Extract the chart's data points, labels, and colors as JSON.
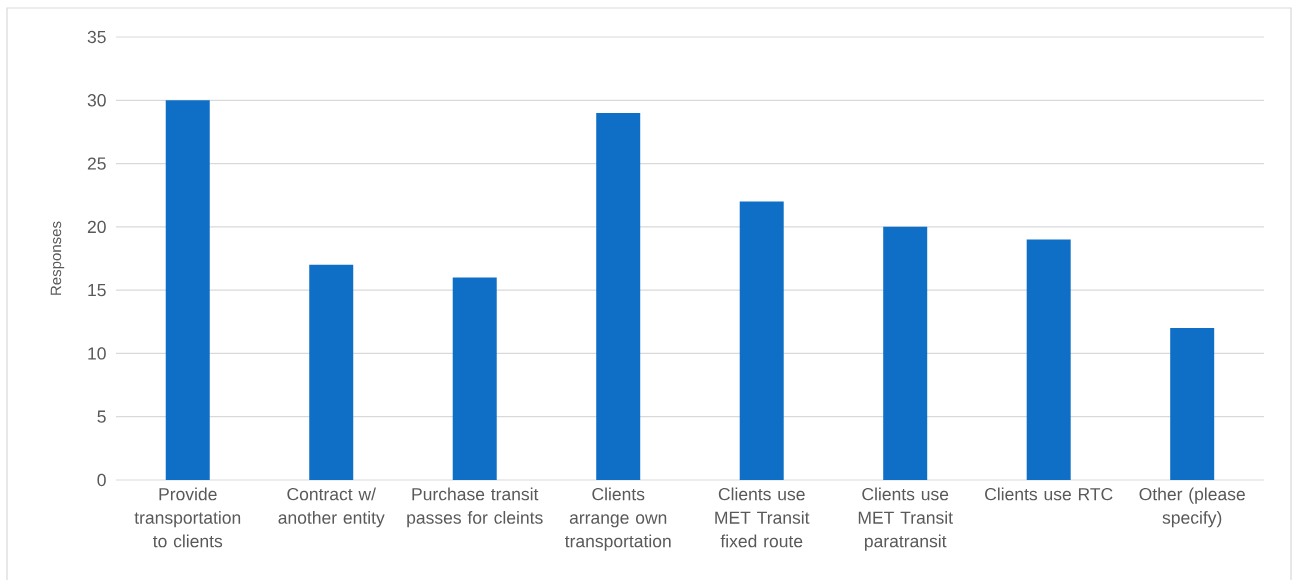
{
  "chart_data": {
    "type": "bar",
    "ylabel": "Responses",
    "categories": [
      "Provide transportation to clients",
      "Contract w/ another entity",
      "Purchase transit passes for cleints",
      "Clients arrange own transportation",
      "Clients use MET Transit fixed route",
      "Clients use MET Transit paratransit",
      "Clients use RTC",
      "Other (please specify)"
    ],
    "values": [
      30,
      17,
      16,
      29,
      22,
      20,
      19,
      12
    ],
    "color": "#0f6fc6",
    "ylim": [
      0,
      35
    ],
    "yticks": [
      0,
      5,
      10,
      15,
      20,
      25,
      30,
      35
    ],
    "grid": "y"
  }
}
